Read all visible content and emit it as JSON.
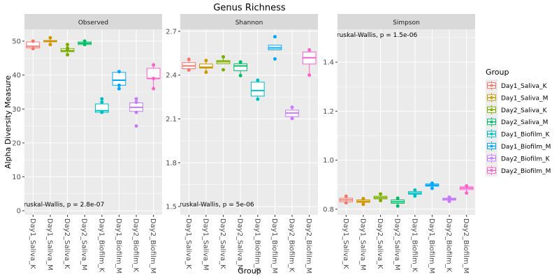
{
  "chart_data": {
    "type": "box",
    "title": "Genus Richness",
    "xlabel": "Group",
    "ylabel": "Alpha Diversity Measure",
    "categories": [
      "Day1_Saliva_K",
      "Day1_Saliva_M",
      "Day2_Saliva_K",
      "Day2_Saliva_M",
      "Day1_Biofilm_K",
      "Day1_Biofilm_M",
      "Day2_Biofilm_K",
      "Day2_Biofilm_M"
    ],
    "colors": [
      "#F8766D",
      "#CD9600",
      "#7CAE00",
      "#00BE67",
      "#00BFC4",
      "#00A9FF",
      "#C77CFF",
      "#FF61CC"
    ],
    "legend": {
      "title": "Group",
      "position": "right"
    },
    "grid": true,
    "panels": [
      {
        "name": "Observed",
        "ylim": [
          -1.2,
          53.5
        ],
        "ticks": [
          0,
          10,
          20,
          30,
          40,
          50
        ],
        "tick_labels": [
          "0",
          "10",
          "20",
          "30",
          "40",
          "50"
        ],
        "annotation": "Kruskal-Wallis, p = 2.8e-07",
        "annotation_pos": "bottom-left",
        "boxes": [
          {
            "q1": 48,
            "med": 48.5,
            "q3": 49.8,
            "lo": 47.8,
            "hi": 50,
            "points": [
              47.8,
              50
            ]
          },
          {
            "q1": 49.8,
            "med": 50,
            "q3": 50.2,
            "lo": 49,
            "hi": 51,
            "points": [
              49,
              51
            ]
          },
          {
            "q1": 46.9,
            "med": 47.2,
            "q3": 47.8,
            "lo": 46,
            "hi": 49,
            "points": [
              46,
              47.5,
              48,
              49
            ]
          },
          {
            "q1": 49,
            "med": 49.4,
            "q3": 49.8,
            "lo": 49,
            "hi": 50,
            "points": [
              49,
              50
            ]
          },
          {
            "q1": 29,
            "med": 29.5,
            "q3": 31.5,
            "lo": 29,
            "hi": 33,
            "points": [
              29,
              32,
              33
            ]
          },
          {
            "q1": 37,
            "med": 38.5,
            "q3": 40.8,
            "lo": 36,
            "hi": 41,
            "points": [
              36,
              37,
              41
            ]
          },
          {
            "q1": 29.3,
            "med": 30.5,
            "q3": 31.8,
            "lo": 29,
            "hi": 33,
            "points": [
              25,
              29,
              32,
              33
            ]
          },
          {
            "q1": 39,
            "med": 39,
            "q3": 42,
            "lo": 36,
            "hi": 43,
            "points": [
              36,
              39,
              43
            ]
          }
        ]
      },
      {
        "name": "Shannon",
        "ylim": [
          1.443,
          2.714
        ],
        "ticks": [
          1.5,
          1.8,
          2.1,
          2.4,
          2.7
        ],
        "tick_labels": [
          "1.5",
          "1.8",
          "2.1",
          "2.4",
          "2.7"
        ],
        "annotation": "Kruskal-Wallis, p = 5e-06",
        "annotation_pos": "bottom-left",
        "boxes": [
          {
            "q1": 2.444,
            "med": 2.463,
            "q3": 2.486,
            "lo": 2.435,
            "hi": 2.508,
            "points": [
              2.435,
              2.508
            ]
          },
          {
            "q1": 2.448,
            "med": 2.454,
            "q3": 2.476,
            "lo": 2.42,
            "hi": 2.5,
            "points": [
              2.42,
              2.5
            ]
          },
          {
            "q1": 2.478,
            "med": 2.492,
            "q3": 2.5,
            "lo": 2.478,
            "hi": 2.525,
            "points": [
              2.437,
              2.525
            ]
          },
          {
            "q1": 2.43,
            "med": 2.463,
            "q3": 2.478,
            "lo": 2.397,
            "hi": 2.49,
            "points": [
              2.397,
              2.49
            ]
          },
          {
            "q1": 2.256,
            "med": 2.295,
            "q3": 2.352,
            "lo": 2.235,
            "hi": 2.365,
            "points": [
              2.235,
              2.365
            ]
          },
          {
            "q1": 2.573,
            "med": 2.587,
            "q3": 2.605,
            "lo": 2.573,
            "hi": 2.605,
            "points": [
              2.511,
              2.663
            ]
          },
          {
            "q1": 2.116,
            "med": 2.14,
            "q3": 2.16,
            "lo": 2.103,
            "hi": 2.18,
            "points": [
              2.103,
              2.18
            ]
          },
          {
            "q1": 2.476,
            "med": 2.519,
            "q3": 2.559,
            "lo": 2.4,
            "hi": 2.573,
            "points": [
              2.4,
              2.573
            ]
          }
        ]
      },
      {
        "name": "Simpson",
        "ylim": [
          0.777,
          1.534
        ],
        "ticks": [
          0.8,
          1.0,
          1.2,
          1.4
        ],
        "tick_labels": [
          "0.8",
          "1.0",
          "1.2",
          "1.4"
        ],
        "annotation": "Kruskal-Wallis, p = 1.5e-06",
        "annotation_pos": "top-left",
        "boxes": [
          {
            "q1": 0.83,
            "med": 0.838,
            "q3": 0.845,
            "lo": 0.826,
            "hi": 0.853,
            "points": [
              0.826,
              0.853
            ]
          },
          {
            "q1": 0.828,
            "med": 0.832,
            "q3": 0.838,
            "lo": 0.82,
            "hi": 0.843,
            "points": [
              0.82,
              0.843
            ]
          },
          {
            "q1": 0.842,
            "med": 0.847,
            "q3": 0.853,
            "lo": 0.835,
            "hi": 0.862,
            "points": [
              0.835,
              0.862
            ]
          },
          {
            "q1": 0.824,
            "med": 0.83,
            "q3": 0.838,
            "lo": 0.813,
            "hi": 0.845,
            "points": [
              0.813,
              0.845
            ]
          },
          {
            "q1": 0.861,
            "med": 0.866,
            "q3": 0.872,
            "lo": 0.854,
            "hi": 0.878,
            "points": [
              0.854,
              0.878
            ]
          },
          {
            "q1": 0.894,
            "med": 0.898,
            "q3": 0.903,
            "lo": 0.885,
            "hi": 0.906,
            "points": [
              0.885,
              0.906
            ]
          },
          {
            "q1": 0.837,
            "med": 0.841,
            "q3": 0.845,
            "lo": 0.832,
            "hi": 0.849,
            "points": [
              0.832,
              0.849
            ]
          },
          {
            "q1": 0.88,
            "med": 0.886,
            "q3": 0.891,
            "lo": 0.866,
            "hi": 0.895,
            "points": [
              0.866,
              0.895
            ]
          }
        ]
      }
    ]
  }
}
